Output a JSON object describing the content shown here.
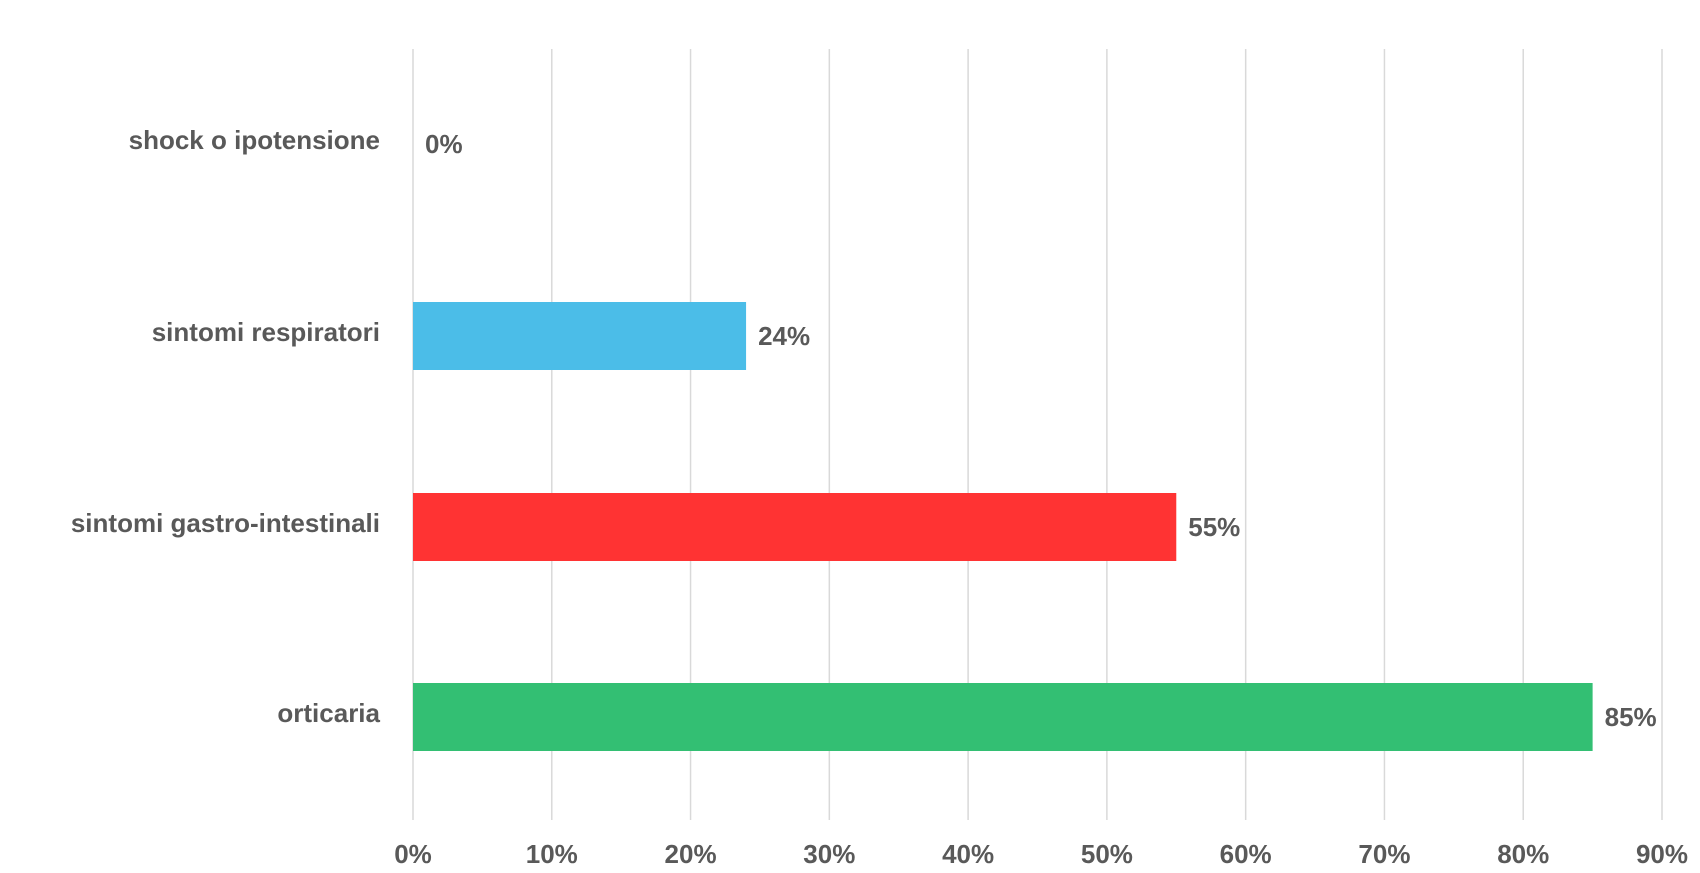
{
  "chart_data": {
    "type": "barh",
    "categories": [
      "shock o ipotensione",
      "sintomi respiratori",
      "sintomi gastro-intestinali",
      "orticaria"
    ],
    "values": [
      0,
      24,
      55,
      85
    ],
    "value_labels": [
      "0%",
      "24%",
      "55%",
      "85%"
    ],
    "colors": [
      "#a6a6a6",
      "#4bbde8",
      "#ff3333",
      "#33bf73"
    ],
    "xlim": [
      0,
      90
    ],
    "xticks": [
      {
        "value": 0,
        "label": "0%"
      },
      {
        "value": 10,
        "label": "10%"
      },
      {
        "value": 20,
        "label": "20%"
      },
      {
        "value": 30,
        "label": "30%"
      },
      {
        "value": 40,
        "label": "40%"
      },
      {
        "value": 50,
        "label": "50%"
      },
      {
        "value": 60,
        "label": "60%"
      },
      {
        "value": 70,
        "label": "70%"
      },
      {
        "value": 80,
        "label": "80%"
      },
      {
        "value": 90,
        "label": "90%"
      }
    ],
    "grid": true
  }
}
